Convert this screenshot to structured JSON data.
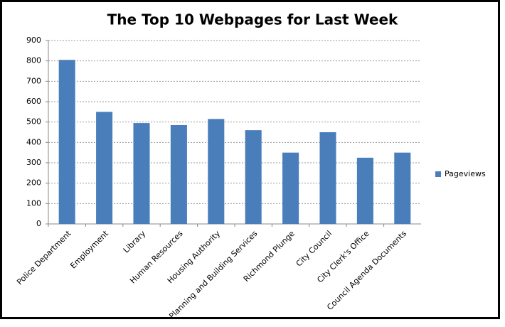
{
  "chart_data": {
    "type": "bar",
    "title": "The Top 10 Webpages for Last Week",
    "categories": [
      "Police Department",
      "Employment",
      "Library",
      "Human Resources",
      "Housing Authority",
      "Planning and Building Services",
      "Richmond Plunge",
      "City Council",
      "City Clerk's Office",
      "Council Agenda Documents"
    ],
    "series": [
      {
        "name": "Pageviews",
        "color": "#4a7ebb",
        "values": [
          805,
          550,
          495,
          485,
          515,
          460,
          350,
          450,
          325,
          350
        ]
      }
    ],
    "ylim": [
      0,
      900
    ],
    "yticks": [
      0,
      100,
      200,
      300,
      400,
      500,
      600,
      700,
      800,
      900
    ],
    "grid": true,
    "legend": "right"
  }
}
